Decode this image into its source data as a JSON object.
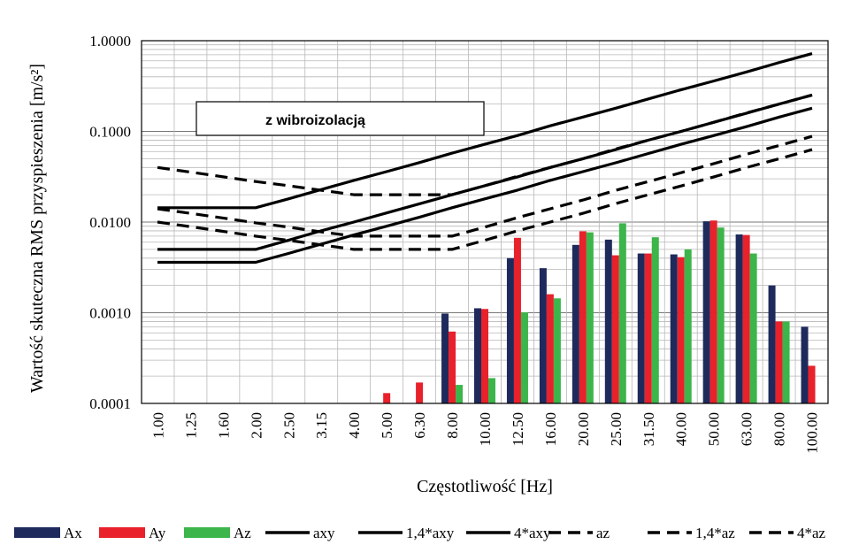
{
  "chart_data": {
    "type": "bar",
    "title": "",
    "xlabel": "Częstotliwość [Hz]",
    "ylabel": "Wartość skuteczna RMS przyspieszenia [m/s²]",
    "y_scale": "log",
    "ylim": [
      0.0001,
      1.0
    ],
    "y_ticks": [
      "0.0001",
      "0.0010",
      "0.0100",
      "0.1000",
      "1.0000"
    ],
    "categories": [
      "1.00",
      "1.25",
      "1.60",
      "2.00",
      "2.50",
      "3.15",
      "4.00",
      "5.00",
      "6.30",
      "8.00",
      "10.00",
      "12.50",
      "16.00",
      "20.00",
      "25.00",
      "31.50",
      "40.00",
      "50.00",
      "63.00",
      "80.00",
      "100.00"
    ],
    "grid": true,
    "legend_position": "bottom",
    "annotation": "z wibroizolacją",
    "bar_series": [
      {
        "name": "Ax",
        "color": "#1f2a5c",
        "values": [
          null,
          null,
          null,
          null,
          null,
          null,
          null,
          null,
          null,
          0.00098,
          0.00112,
          0.004,
          0.0031,
          0.0056,
          0.0064,
          0.0045,
          0.0044,
          0.0102,
          0.0073,
          0.002,
          0.0007
        ]
      },
      {
        "name": "Ay",
        "color": "#e8212b",
        "values": [
          null,
          null,
          null,
          null,
          null,
          null,
          null,
          0.00013,
          0.00017,
          0.00062,
          0.0011,
          0.0067,
          0.0016,
          0.0079,
          0.0043,
          0.0045,
          0.0041,
          0.0104,
          0.0072,
          0.0008,
          0.00026
        ]
      },
      {
        "name": "Az",
        "color": "#3cb54a",
        "values": [
          null,
          null,
          null,
          null,
          null,
          null,
          null,
          null,
          null,
          0.00016,
          0.00019,
          0.00101,
          0.00144,
          0.0077,
          0.0097,
          0.0068,
          0.005,
          0.0087,
          0.0045,
          0.0008,
          null
        ]
      }
    ],
    "line_series": [
      {
        "name": "axy",
        "style": "solid",
        "values": [
          0.0036,
          0.0036,
          0.0036,
          0.0036,
          0.0045,
          0.0057,
          0.0072,
          0.009,
          0.0113,
          0.0144,
          0.018,
          0.0225,
          0.0288,
          0.036,
          0.045,
          0.057,
          0.072,
          0.09,
          0.113,
          0.144,
          0.18
        ]
      },
      {
        "name": "1,4*axy",
        "style": "solid",
        "values": [
          0.005,
          0.005,
          0.005,
          0.005,
          0.0063,
          0.008,
          0.01,
          0.0126,
          0.0159,
          0.02,
          0.0252,
          0.0315,
          0.04,
          0.05,
          0.063,
          0.08,
          0.1,
          0.126,
          0.159,
          0.2,
          0.252
        ]
      },
      {
        "name": "4*axy",
        "style": "solid",
        "values": [
          0.0144,
          0.0144,
          0.0144,
          0.0144,
          0.018,
          0.0228,
          0.0288,
          0.036,
          0.0452,
          0.0576,
          0.072,
          0.09,
          0.1152,
          0.144,
          0.18,
          0.228,
          0.288,
          0.36,
          0.452,
          0.576,
          0.72
        ]
      },
      {
        "name": "az",
        "style": "dashed",
        "values": [
          0.01,
          0.0089,
          0.0079,
          0.007,
          0.0063,
          0.0056,
          0.005,
          0.005,
          0.005,
          0.005,
          0.0063,
          0.008,
          0.01,
          0.0125,
          0.016,
          0.02,
          0.025,
          0.0315,
          0.04,
          0.05,
          0.063
        ]
      },
      {
        "name": "1,4*az",
        "style": "dashed",
        "values": [
          0.014,
          0.0125,
          0.0111,
          0.0098,
          0.0088,
          0.0078,
          0.007,
          0.007,
          0.007,
          0.007,
          0.0088,
          0.0112,
          0.014,
          0.0175,
          0.0224,
          0.028,
          0.035,
          0.0441,
          0.056,
          0.07,
          0.0882
        ]
      },
      {
        "name": "4*az",
        "style": "dashed",
        "values": [
          0.04,
          0.0356,
          0.0316,
          0.028,
          0.0252,
          0.0224,
          0.02,
          0.02,
          0.02,
          0.02,
          0.0252,
          0.032,
          0.04,
          0.05,
          0.064,
          0.08,
          0.1,
          0.126,
          0.16,
          0.2,
          0.252
        ]
      }
    ]
  }
}
